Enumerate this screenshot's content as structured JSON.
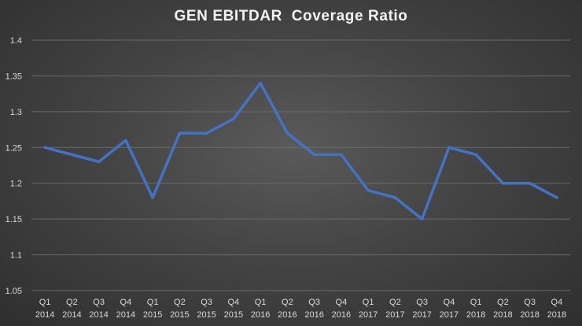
{
  "chart_data": {
    "type": "line",
    "title": "GEN EBITDAR  Coverage Ratio",
    "xlabel": "",
    "ylabel": "",
    "ylim": [
      1.05,
      1.4
    ],
    "yticks": [
      "1.05",
      "1.1",
      "1.15",
      "1.2",
      "1.25",
      "1.3",
      "1.35",
      "1.4"
    ],
    "grid": true,
    "categories": [
      {
        "quarter": "Q1",
        "year": "2014"
      },
      {
        "quarter": "Q2",
        "year": "2014"
      },
      {
        "quarter": "Q3",
        "year": "2014"
      },
      {
        "quarter": "Q4",
        "year": "2014"
      },
      {
        "quarter": "Q1",
        "year": "2015"
      },
      {
        "quarter": "Q2",
        "year": "2015"
      },
      {
        "quarter": "Q3",
        "year": "2015"
      },
      {
        "quarter": "Q4",
        "year": "2015"
      },
      {
        "quarter": "Q1",
        "year": "2016"
      },
      {
        "quarter": "Q2",
        "year": "2016"
      },
      {
        "quarter": "Q3",
        "year": "2016"
      },
      {
        "quarter": "Q4",
        "year": "2016"
      },
      {
        "quarter": "Q1",
        "year": "2017"
      },
      {
        "quarter": "Q2",
        "year": "2017"
      },
      {
        "quarter": "Q3",
        "year": "2017"
      },
      {
        "quarter": "Q4",
        "year": "2017"
      },
      {
        "quarter": "Q1",
        "year": "2018"
      },
      {
        "quarter": "Q2",
        "year": "2018"
      },
      {
        "quarter": "Q3",
        "year": "2018"
      },
      {
        "quarter": "Q4",
        "year": "2018"
      }
    ],
    "series": [
      {
        "name": "GEN EBITDAR Coverage Ratio",
        "color": "#4472c4",
        "values": [
          1.25,
          1.24,
          1.23,
          1.26,
          1.18,
          1.27,
          1.27,
          1.29,
          1.34,
          1.27,
          1.24,
          1.24,
          1.19,
          1.18,
          1.15,
          1.25,
          1.24,
          1.2,
          1.2,
          1.18
        ]
      }
    ]
  }
}
